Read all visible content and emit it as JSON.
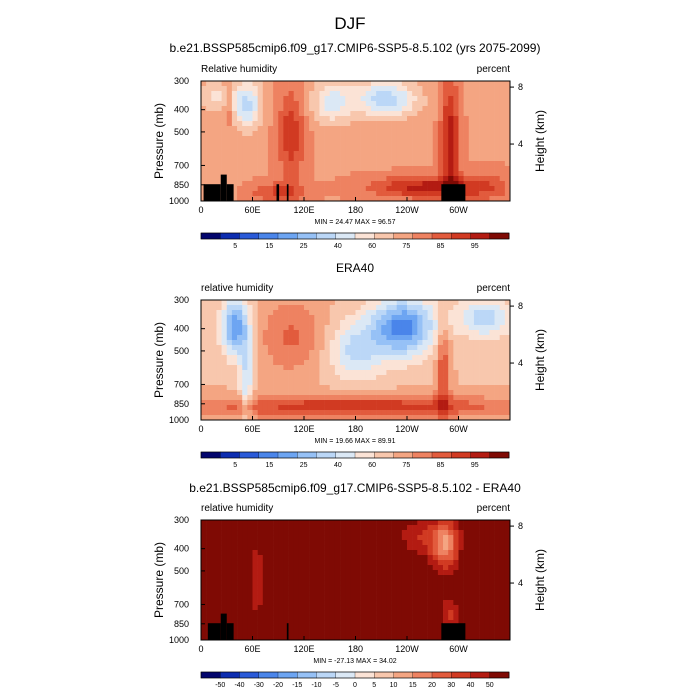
{
  "figure": {
    "title": "DJF"
  },
  "chart_data": [
    {
      "type": "heatmap",
      "title": "b.e21.BSSP585cmip6.f09_g17.CMIP6-SSP5-8.5.102 (yrs 2075-2099)",
      "left_label": "Relative humidity",
      "right_label": "percent",
      "ylabel": "Pressure (mb)",
      "y2label": "Height (km)",
      "x_ticks": [
        "0",
        "60E",
        "120E",
        "180",
        "120W",
        "60W"
      ],
      "y_ticks": [
        "300",
        "400",
        "500",
        "700",
        "850",
        "1000"
      ],
      "y2_ticks": [
        "8",
        "4"
      ],
      "stats": "MIN =  24.47   MAX =  96.57",
      "colorbar_labels": [
        "5",
        "15",
        "25",
        "40",
        "60",
        "75",
        "85",
        "95"
      ],
      "colorbar_colors": [
        "#03066d",
        "#0c2db0",
        "#2a5ad8",
        "#4a85ea",
        "#6da5f2",
        "#96c1f6",
        "#bbd7f7",
        "#dbe8f5",
        "#fbe3d6",
        "#f8c7ad",
        "#f4a582",
        "#ee8261",
        "#e25b3d",
        "#d13a22",
        "#b31b12",
        "#7f0a04"
      ],
      "base_rh": 68,
      "lat_bands": [
        [
          [
            8,
            38
          ],
          [
            0.8,
            1.0
          ],
          -4
        ],
        [
          [
            27,
            38
          ],
          [
            0,
            0.35
          ],
          12
        ],
        [
          [
            0,
            40
          ],
          [
            0,
            0.25
          ],
          -14
        ],
        [
          [
            38,
            70
          ],
          [
            0,
            0.4
          ],
          -26
        ],
        [
          [
            58,
            120
          ],
          [
            0.85,
            1.0
          ],
          14
        ],
        [
          [
            90,
            120
          ],
          [
            0.1,
            0.8
          ],
          18
        ],
        [
          [
            130,
            175
          ],
          [
            0,
            0.35
          ],
          -20
        ],
        [
          [
            180,
            250
          ],
          [
            0,
            0.3
          ],
          -28
        ],
        [
          [
            200,
            320
          ],
          [
            0.8,
            0.97
          ],
          22
        ],
        [
          [
            280,
            300
          ],
          [
            0,
            1.0
          ],
          24
        ],
        [
          [
            300,
            360
          ],
          [
            0.75,
            1.0
          ],
          10
        ]
      ],
      "terrain": [
        [
          [
            3,
            23
          ],
          [
            0.86,
            1.0
          ]
        ],
        [
          [
            23,
            30
          ],
          [
            0.78,
            1.0
          ]
        ],
        [
          [
            30,
            38
          ],
          [
            0.86,
            1.0
          ]
        ],
        [
          [
            88,
            91
          ],
          [
            0.86,
            1.0
          ]
        ],
        [
          [
            100,
            102
          ],
          [
            0.86,
            1.0
          ]
        ],
        [
          [
            280,
            308
          ],
          [
            0.86,
            1.0
          ]
        ]
      ]
    },
    {
      "type": "heatmap",
      "title": "ERA40",
      "left_label": "relative humidity",
      "right_label": "percent",
      "ylabel": "Pressure (mb)",
      "y2label": "Height (km)",
      "x_ticks": [
        "0",
        "60E",
        "120E",
        "180",
        "120W",
        "60W"
      ],
      "y_ticks": [
        "300",
        "400",
        "500",
        "700",
        "850",
        "1000"
      ],
      "y2_ticks": [
        "8",
        "4"
      ],
      "stats": "MIN =  19.66   MAX =  89.91",
      "colorbar_labels": [
        "5",
        "15",
        "25",
        "40",
        "60",
        "75",
        "85",
        "95"
      ],
      "colorbar_colors": [
        "#03066d",
        "#0c2db0",
        "#2a5ad8",
        "#4a85ea",
        "#6da5f2",
        "#96c1f6",
        "#bbd7f7",
        "#dbe8f5",
        "#fbe3d6",
        "#f8c7ad",
        "#f4a582",
        "#ee8261",
        "#e25b3d",
        "#d13a22",
        "#b31b12",
        "#7f0a04"
      ],
      "base_rh": 62,
      "lat_bands": [
        [
          [
            25,
            55
          ],
          [
            0,
            0.45
          ],
          -36
        ],
        [
          [
            45,
            60
          ],
          [
            0.3,
            1.0
          ],
          -18
        ],
        [
          [
            70,
            140
          ],
          [
            0,
            0.6
          ],
          14
        ],
        [
          [
            150,
            210
          ],
          [
            0.2,
            0.65
          ],
          -20
        ],
        [
          [
            200,
            270
          ],
          [
            0,
            0.45
          ],
          -40
        ],
        [
          [
            0,
            360
          ],
          [
            0.8,
            0.98
          ],
          24
        ],
        [
          [
            275,
            290
          ],
          [
            0.2,
            1.0
          ],
          20
        ],
        [
          [
            300,
            360
          ],
          [
            0,
            0.3
          ],
          -22
        ]
      ],
      "terrain": []
    },
    {
      "type": "heatmap",
      "title": "b.e21.BSSP585cmip6.f09_g17.CMIP6-SSP5-8.5.102 - ERA40",
      "left_label": "relative humidity",
      "right_label": "percent",
      "ylabel": "Pressure (mb)",
      "y2label": "Height (km)",
      "x_ticks": [
        "0",
        "60E",
        "120E",
        "180",
        "120W",
        "60W"
      ],
      "y_ticks": [
        "300",
        "400",
        "500",
        "700",
        "850",
        "1000"
      ],
      "y2_ticks": [
        "8",
        "4"
      ],
      "stats": "MIN = -27.13   MAX =  34.02",
      "colorbar_labels": [
        "-50",
        "-40",
        "-30",
        "-20",
        "-15",
        "-10",
        "-5",
        "0",
        "5",
        "10",
        "15",
        "20",
        "30",
        "40",
        "50"
      ],
      "colorbar_colors": [
        "#03066d",
        "#0c2db0",
        "#2a5ad8",
        "#4a85ea",
        "#6da5f2",
        "#96c1f6",
        "#bbd7f7",
        "#dbe8f5",
        "#fbe3d6",
        "#f8c7ad",
        "#f4a582",
        "#ee8261",
        "#e25b3d",
        "#d13a22",
        "#b31b12",
        "#7f0a04"
      ],
      "base_rh": 50,
      "lat_bands": [
        [
          [
            20,
            45
          ],
          [
            0.15,
            0.6
          ],
          26
        ],
        [
          [
            50,
            80
          ],
          [
            0,
            1.0
          ],
          -8
        ],
        [
          [
            140,
            210
          ],
          [
            0.15,
            0.6
          ],
          28
        ],
        [
          [
            230,
            280
          ],
          [
            0,
            0.3
          ],
          -12
        ],
        [
          [
            270,
            300
          ],
          [
            0,
            0.4
          ],
          -30
        ],
        [
          [
            310,
            335
          ],
          [
            0.25,
            0.6
          ],
          24
        ],
        [
          [
            280,
            300
          ],
          [
            0.65,
            0.9
          ],
          -14
        ]
      ],
      "terrain": [
        [
          [
            8,
            23
          ],
          [
            0.86,
            1.0
          ]
        ],
        [
          [
            23,
            30
          ],
          [
            0.78,
            1.0
          ]
        ],
        [
          [
            30,
            38
          ],
          [
            0.86,
            1.0
          ]
        ],
        [
          [
            100,
            102
          ],
          [
            0.86,
            1.0
          ]
        ],
        [
          [
            280,
            308
          ],
          [
            0.86,
            1.0
          ]
        ]
      ]
    }
  ]
}
